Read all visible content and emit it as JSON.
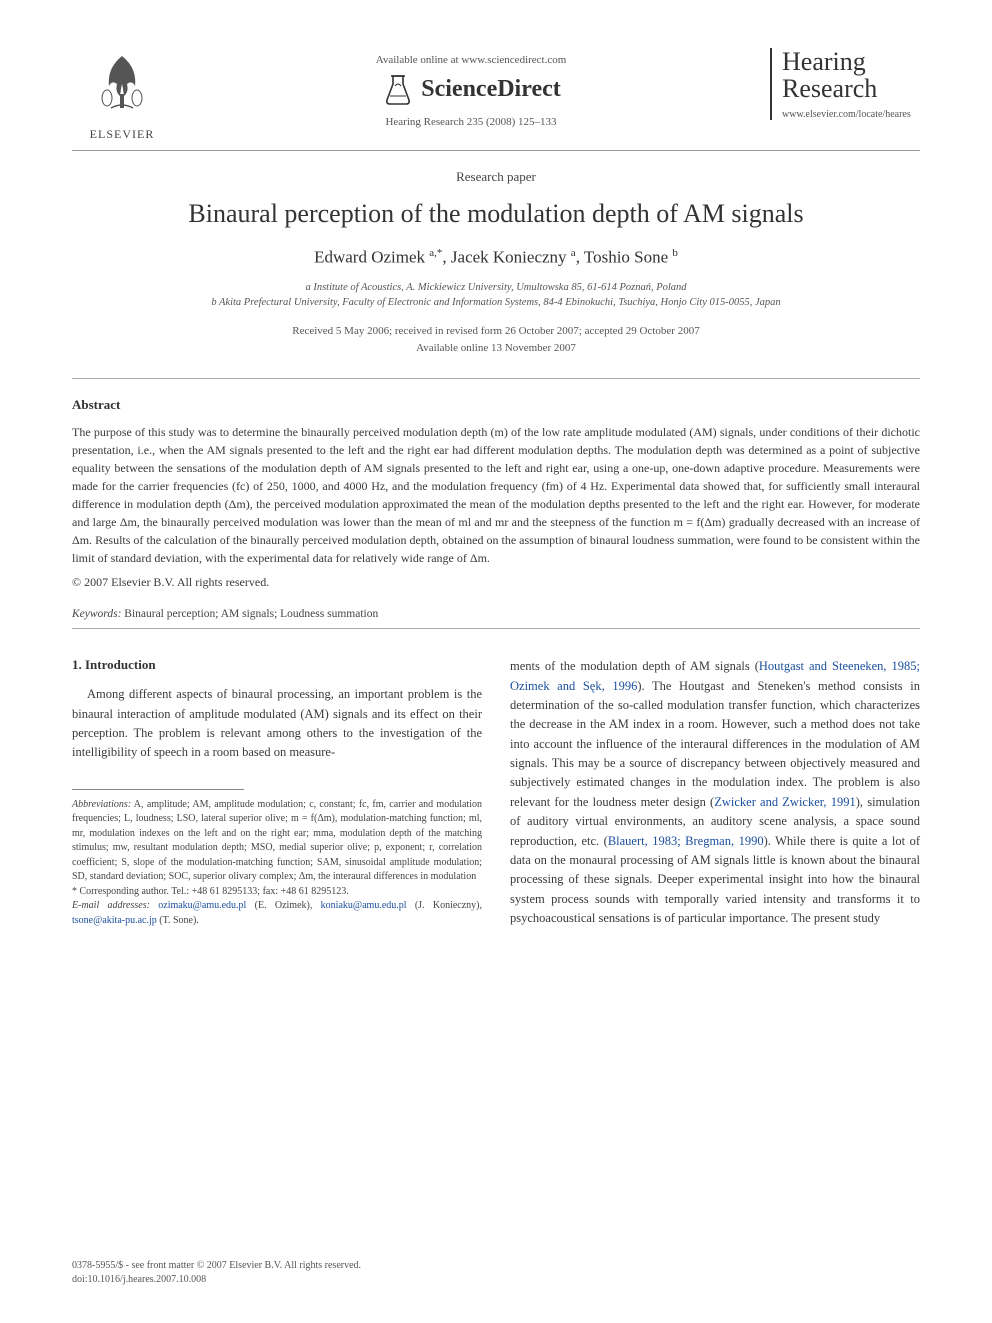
{
  "header": {
    "elsevier_label": "ELSEVIER",
    "available_online": "Available online at www.sciencedirect.com",
    "sciencedirect": "ScienceDirect",
    "journal_ref": "Hearing Research 235 (2008) 125–133",
    "journal_title_line1": "Hearing",
    "journal_title_line2": "Research",
    "journal_url": "www.elsevier.com/locate/heares"
  },
  "paper": {
    "type": "Research paper",
    "title": "Binaural perception of the modulation depth of AM signals",
    "authors_html": "Edward Ozimek <sup>a,*</sup>, Jacek Konieczny <sup>a</sup>, Toshio Sone <sup>b</sup>",
    "affiliations": [
      "a Institute of Acoustics, A. Mickiewicz University, Umultowska 85, 61-614 Poznań, Poland",
      "b Akita Prefectural University, Faculty of Electronic and Information Systems, 84-4 Ebinokuchi, Tsuchiya, Honjo City 015-0055, Japan"
    ],
    "dates_line1": "Received 5 May 2006; received in revised form 26 October 2007; accepted 29 October 2007",
    "dates_line2": "Available online 13 November 2007"
  },
  "abstract": {
    "heading": "Abstract",
    "body": "The purpose of this study was to determine the binaurally perceived modulation depth (m) of the low rate amplitude modulated (AM) signals, under conditions of their dichotic presentation, i.e., when the AM signals presented to the left and the right ear had different modulation depths. The modulation depth was determined as a point of subjective equality between the sensations of the modulation depth of AM signals presented to the left and right ear, using a one-up, one-down adaptive procedure. Measurements were made for the carrier frequencies (fc) of 250, 1000, and 4000 Hz, and the modulation frequency (fm) of 4 Hz. Experimental data showed that, for sufficiently small interaural difference in modulation depth (Δm), the perceived modulation approximated the mean of the modulation depths presented to the left and the right ear. However, for moderate and large Δm, the binaurally perceived modulation was lower than the mean of ml and mr and the steepness of the function m = f(Δm) gradually decreased with an increase of Δm. Results of the calculation of the binaurally perceived modulation depth, obtained on the assumption of binaural loudness summation, were found to be consistent within the limit of standard deviation, with the experimental data for relatively wide range of Δm.",
    "copyright": "© 2007 Elsevier B.V. All rights reserved."
  },
  "keywords": {
    "label": "Keywords:",
    "text": "Binaural perception; AM signals; Loudness summation"
  },
  "intro": {
    "heading": "1. Introduction",
    "col_left": "Among different aspects of binaural processing, an important problem is the binaural interaction of amplitude modulated (AM) signals and its effect on their perception. The problem is relevant among others to the investigation of the intelligibility of speech in a room based on measure-",
    "col_right_1": "ments of the modulation depth of AM signals (",
    "link1": "Houtgast and Steeneken, 1985; Ozimek and Sęk, 1996",
    "col_right_2": "). The Houtgast and Steneken's method consists in determination of the so-called modulation transfer function, which characterizes the decrease in the AM index in a room. However, such a method does not take into account the influence of the interaural differences in the modulation of AM signals. This may be a source of discrepancy between objectively measured and subjectively estimated changes in the modulation index. The problem is also relevant for the loudness meter design (",
    "link2": "Zwicker and Zwicker, 1991",
    "col_right_3": "), simulation of auditory virtual environments, an auditory scene analysis, a space sound reproduction, etc. (",
    "link3": "Blauert, 1983; Bregman, 1990",
    "col_right_4": "). While there is quite a lot of data on the monaural processing of AM signals little is known about the binaural processing of these signals. Deeper experimental insight into how the binaural system process sounds with temporally varied intensity and transforms it to psychoacoustical sensations is of particular importance. The present study"
  },
  "footnotes": {
    "abbrev_label": "Abbreviations:",
    "abbrev_text": " A, amplitude; AM, amplitude modulation; c, constant; fc, fm, carrier and modulation frequencies; L, loudness; LSO, lateral superior olive; m = f(Δm), modulation-matching function; ml, mr, modulation indexes on the left and on the right ear; mma, modulation depth of the matching stimulus; mw, resultant modulation depth; MSO, medial superior olive; p, exponent; r, correlation coefficient; S, slope of the modulation-matching function; SAM, sinusoidal amplitude modulation; SD, standard deviation; SOC, superior olivary complex; Δm, the interaural differences in modulation",
    "corr_label": "* Corresponding author. Tel.: +48 61 8295133; fax: +48 61 8295123.",
    "email_label": "E-mail addresses:",
    "email1": "ozimaku@amu.edu.pl",
    "email1_name": " (E. Ozimek), ",
    "email2": "koniaku@amu.edu.pl",
    "email2_name": " (J. Konieczny), ",
    "email3": "tsone@akita-pu.ac.jp",
    "email3_name": " (T. Sone)."
  },
  "bottom": {
    "line1": "0378-5955/$ - see front matter © 2007 Elsevier B.V. All rights reserved.",
    "line2": "doi:10.1016/j.heares.2007.10.008"
  },
  "colors": {
    "text": "#3a3a3a",
    "link": "#1a4f9c",
    "rule": "#999999",
    "background": "#ffffff"
  }
}
